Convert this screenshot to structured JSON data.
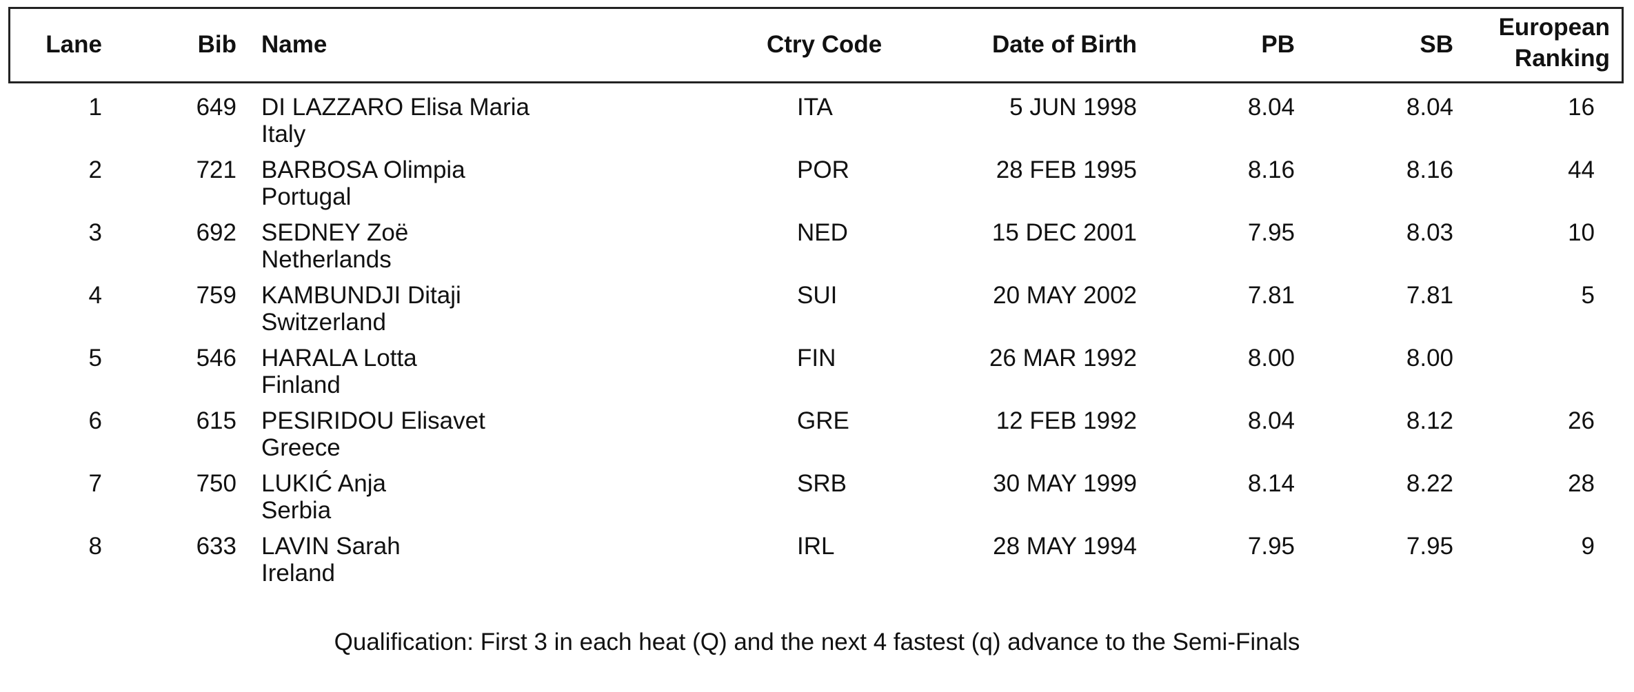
{
  "headers": {
    "lane": "Lane",
    "bib": "Bib",
    "name": "Name",
    "ctry_code": "Ctry Code",
    "dob": "Date of Birth",
    "pb": "PB",
    "sb": "SB",
    "ranking_line1": "European",
    "ranking_line2": "Ranking"
  },
  "rows": [
    {
      "lane": "1",
      "bib": "649",
      "name": "DI LAZZARO Elisa Maria",
      "country": "Italy",
      "code": "ITA",
      "dob": "5 JUN 1998",
      "pb": "8.04",
      "sb": "8.04",
      "rank": "16"
    },
    {
      "lane": "2",
      "bib": "721",
      "name": "BARBOSA Olimpia",
      "country": "Portugal",
      "code": "POR",
      "dob": "28 FEB 1995",
      "pb": "8.16",
      "sb": "8.16",
      "rank": "44"
    },
    {
      "lane": "3",
      "bib": "692",
      "name": "SEDNEY Zoë",
      "country": "Netherlands",
      "code": "NED",
      "dob": "15 DEC 2001",
      "pb": "7.95",
      "sb": "8.03",
      "rank": "10"
    },
    {
      "lane": "4",
      "bib": "759",
      "name": "KAMBUNDJI Ditaji",
      "country": "Switzerland",
      "code": "SUI",
      "dob": "20 MAY 2002",
      "pb": "7.81",
      "sb": "7.81",
      "rank": "5"
    },
    {
      "lane": "5",
      "bib": "546",
      "name": "HARALA Lotta",
      "country": "Finland",
      "code": "FIN",
      "dob": "26 MAR 1992",
      "pb": "8.00",
      "sb": "8.00",
      "rank": ""
    },
    {
      "lane": "6",
      "bib": "615",
      "name": "PESIRIDOU Elisavet",
      "country": "Greece",
      "code": "GRE",
      "dob": "12 FEB 1992",
      "pb": "8.04",
      "sb": "8.12",
      "rank": "26"
    },
    {
      "lane": "7",
      "bib": "750",
      "name": "LUKIĆ Anja",
      "country": "Serbia",
      "code": "SRB",
      "dob": "30 MAY 1999",
      "pb": "8.14",
      "sb": "8.22",
      "rank": "28"
    },
    {
      "lane": "8",
      "bib": "633",
      "name": "LAVIN Sarah",
      "country": "Ireland",
      "code": "IRL",
      "dob": "28 MAY 1994",
      "pb": "7.95",
      "sb": "7.95",
      "rank": "9"
    }
  ],
  "footer": "Qualification: First 3 in each heat (Q) and the next 4 fastest (q) advance to the Semi-Finals"
}
